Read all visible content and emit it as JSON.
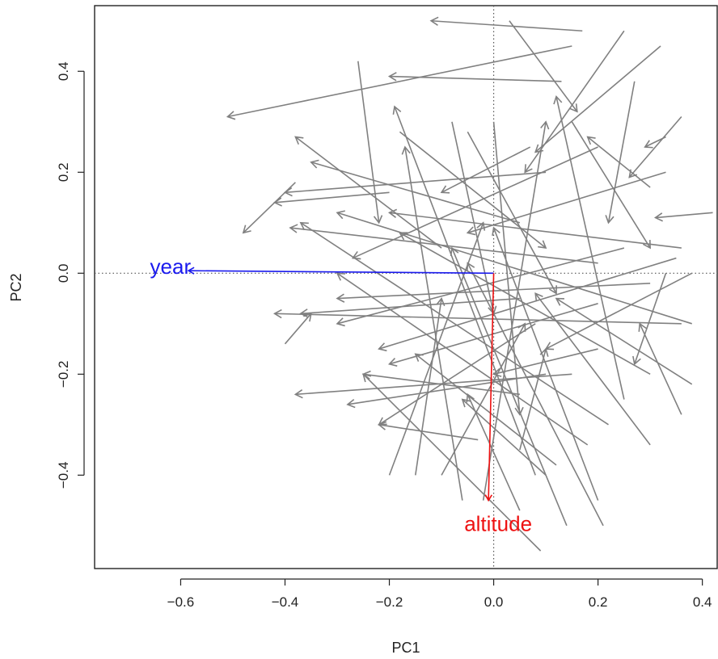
{
  "chart_data": {
    "type": "biplot",
    "title": "",
    "xlabel": "PC1",
    "ylabel": "PC2",
    "xlim": [
      -0.765,
      0.43
    ],
    "ylim": [
      -0.585,
      0.53
    ],
    "grid": false,
    "reference_lines": {
      "x": 0,
      "y": 0,
      "style": "dotted"
    },
    "x_ticks": [
      {
        "value": -0.6,
        "label": "−0.6"
      },
      {
        "value": -0.4,
        "label": "−0.4"
      },
      {
        "value": -0.2,
        "label": "−0.2"
      },
      {
        "value": 0.0,
        "label": "0.0"
      },
      {
        "value": 0.2,
        "label": "0.2"
      },
      {
        "value": 0.4,
        "label": "0.4"
      }
    ],
    "y_ticks": [
      {
        "value": -0.4,
        "label": "−0.4"
      },
      {
        "value": -0.2,
        "label": "−0.2"
      },
      {
        "value": 0.0,
        "label": "0.0"
      },
      {
        "value": 0.2,
        "label": "0.2"
      },
      {
        "value": 0.4,
        "label": "0.4"
      }
    ],
    "variables": [
      {
        "name": "year",
        "x0": 0,
        "y0": 0,
        "x1": -0.585,
        "y1": 0.005,
        "color": "#1a1aee"
      },
      {
        "name": "altitude",
        "x0": 0,
        "y0": 0,
        "x1": -0.01,
        "y1": -0.45,
        "color": "#ee1111"
      }
    ],
    "observation_arrow_color": "#808080",
    "observations": [
      {
        "x0": 0.17,
        "y0": 0.48,
        "x1": -0.12,
        "y1": 0.5
      },
      {
        "x0": 0.15,
        "y0": 0.45,
        "x1": -0.51,
        "y1": 0.31
      },
      {
        "x0": 0.13,
        "y0": 0.38,
        "x1": -0.2,
        "y1": 0.39
      },
      {
        "x0": -0.26,
        "y0": 0.42,
        "x1": -0.22,
        "y1": 0.1
      },
      {
        "x0": 0.03,
        "y0": 0.5,
        "x1": 0.16,
        "y1": 0.32
      },
      {
        "x0": 0.25,
        "y0": 0.48,
        "x1": 0.06,
        "y1": 0.2
      },
      {
        "x0": 0.32,
        "y0": 0.45,
        "x1": 0.08,
        "y1": 0.24
      },
      {
        "x0": 0.33,
        "y0": 0.27,
        "x1": 0.29,
        "y1": 0.25
      },
      {
        "x0": 0.42,
        "y0": 0.12,
        "x1": 0.31,
        "y1": 0.11
      },
      {
        "x0": 0.36,
        "y0": 0.31,
        "x1": 0.26,
        "y1": 0.19
      },
      {
        "x0": 0.3,
        "y0": 0.17,
        "x1": 0.18,
        "y1": 0.27
      },
      {
        "x0": -0.38,
        "y0": 0.18,
        "x1": -0.48,
        "y1": 0.08
      },
      {
        "x0": -0.2,
        "y0": 0.16,
        "x1": -0.42,
        "y1": 0.14
      },
      {
        "x0": 0.1,
        "y0": 0.2,
        "x1": -0.4,
        "y1": 0.16
      },
      {
        "x0": -0.1,
        "y0": 0.05,
        "x1": -0.38,
        "y1": 0.27
      },
      {
        "x0": 0.05,
        "y0": 0.1,
        "x1": -0.35,
        "y1": 0.22
      },
      {
        "x0": 0.2,
        "y0": 0.02,
        "x1": -0.39,
        "y1": 0.09
      },
      {
        "x0": 0.36,
        "y0": 0.05,
        "x1": -0.2,
        "y1": 0.12
      },
      {
        "x0": 0.38,
        "y0": -0.1,
        "x1": -0.3,
        "y1": 0.12
      },
      {
        "x0": 0.33,
        "y0": 0.2,
        "x1": -0.05,
        "y1": 0.08
      },
      {
        "x0": -0.05,
        "y0": 0.28,
        "x1": 0.12,
        "y1": -0.04
      },
      {
        "x0": 0.2,
        "y0": 0.25,
        "x1": -0.27,
        "y1": 0.03
      },
      {
        "x0": -0.18,
        "y0": 0.28,
        "x1": 0.1,
        "y1": 0.05
      },
      {
        "x0": 0.25,
        "y0": 0.05,
        "x1": -0.3,
        "y1": -0.1
      },
      {
        "x0": 0.3,
        "y0": -0.2,
        "x1": -0.18,
        "y1": 0.08
      },
      {
        "x0": 0.36,
        "y0": -0.1,
        "x1": -0.42,
        "y1": -0.08
      },
      {
        "x0": 0.22,
        "y0": -0.3,
        "x1": -0.37,
        "y1": 0.1
      },
      {
        "x0": -0.06,
        "y0": -0.45,
        "x1": -0.17,
        "y1": 0.25
      },
      {
        "x0": -0.02,
        "y0": -0.45,
        "x1": 0.1,
        "y1": 0.3
      },
      {
        "x0": 0.2,
        "y0": -0.45,
        "x1": 0.0,
        "y1": 0.09
      },
      {
        "x0": 0.14,
        "y0": -0.5,
        "x1": -0.08,
        "y1": 0.05
      },
      {
        "x0": 0.09,
        "y0": -0.55,
        "x1": -0.25,
        "y1": -0.2
      },
      {
        "x0": 0.21,
        "y0": -0.5,
        "x1": -0.05,
        "y1": 0.02
      },
      {
        "x0": 0.08,
        "y0": -0.4,
        "x1": -0.19,
        "y1": 0.33
      },
      {
        "x0": 0.18,
        "y0": -0.34,
        "x1": -0.3,
        "y1": 0.0
      },
      {
        "x0": -0.15,
        "y0": -0.4,
        "x1": -0.1,
        "y1": -0.05
      },
      {
        "x0": 0.15,
        "y0": -0.2,
        "x1": -0.38,
        "y1": -0.24
      },
      {
        "x0": 0.1,
        "y0": -0.2,
        "x1": -0.28,
        "y1": -0.26
      },
      {
        "x0": 0.08,
        "y0": -0.1,
        "x1": -0.22,
        "y1": -0.3
      },
      {
        "x0": -0.03,
        "y0": -0.33,
        "x1": -0.22,
        "y1": -0.3
      },
      {
        "x0": 0.12,
        "y0": -0.38,
        "x1": -0.15,
        "y1": -0.16
      },
      {
        "x0": 0.1,
        "y0": -0.4,
        "x1": -0.06,
        "y1": -0.25
      },
      {
        "x0": -0.1,
        "y0": -0.4,
        "x1": 0.06,
        "y1": -0.1
      },
      {
        "x0": -0.2,
        "y0": -0.4,
        "x1": -0.02,
        "y1": 0.1
      },
      {
        "x0": 0.05,
        "y0": -0.47,
        "x1": -0.05,
        "y1": -0.24
      },
      {
        "x0": 0.05,
        "y0": -0.35,
        "x1": 0.1,
        "y1": -0.15
      },
      {
        "x0": 0.05,
        "y0": -0.24,
        "x1": -0.25,
        "y1": -0.2
      },
      {
        "x0": -0.4,
        "y0": -0.14,
        "x1": -0.35,
        "y1": -0.08
      },
      {
        "x0": 0.05,
        "y0": -0.05,
        "x1": -0.37,
        "y1": -0.08
      },
      {
        "x0": 0.3,
        "y0": -0.02,
        "x1": -0.3,
        "y1": -0.05
      },
      {
        "x0": 0.35,
        "y0": 0.03,
        "x1": -0.22,
        "y1": -0.15
      },
      {
        "x0": 0.38,
        "y0": -0.22,
        "x1": 0.12,
        "y1": -0.05
      },
      {
        "x0": 0.3,
        "y0": -0.34,
        "x1": 0.08,
        "y1": -0.04
      },
      {
        "x0": 0.38,
        "y0": 0.0,
        "x1": 0.1,
        "y1": -0.15
      },
      {
        "x0": 0.2,
        "y0": -0.15,
        "x1": 0.0,
        "y1": -0.2
      },
      {
        "x0": 0.25,
        "y0": -0.25,
        "x1": 0.12,
        "y1": 0.35
      },
      {
        "x0": 0.27,
        "y0": 0.38,
        "x1": 0.22,
        "y1": 0.1
      },
      {
        "x0": 0.15,
        "y0": 0.3,
        "x1": 0.3,
        "y1": 0.05
      },
      {
        "x0": 0.33,
        "y0": 0.0,
        "x1": 0.27,
        "y1": -0.18
      },
      {
        "x0": 0.36,
        "y0": -0.28,
        "x1": 0.28,
        "y1": -0.1
      },
      {
        "x0": 0.07,
        "y0": 0.25,
        "x1": -0.1,
        "y1": 0.16
      },
      {
        "x0": -0.08,
        "y0": 0.3,
        "x1": 0.0,
        "y1": -0.08
      },
      {
        "x0": 0.0,
        "y0": 0.3,
        "x1": 0.05,
        "y1": -0.28
      },
      {
        "x0": 0.2,
        "y0": -0.06,
        "x1": -0.2,
        "y1": -0.18
      }
    ]
  }
}
